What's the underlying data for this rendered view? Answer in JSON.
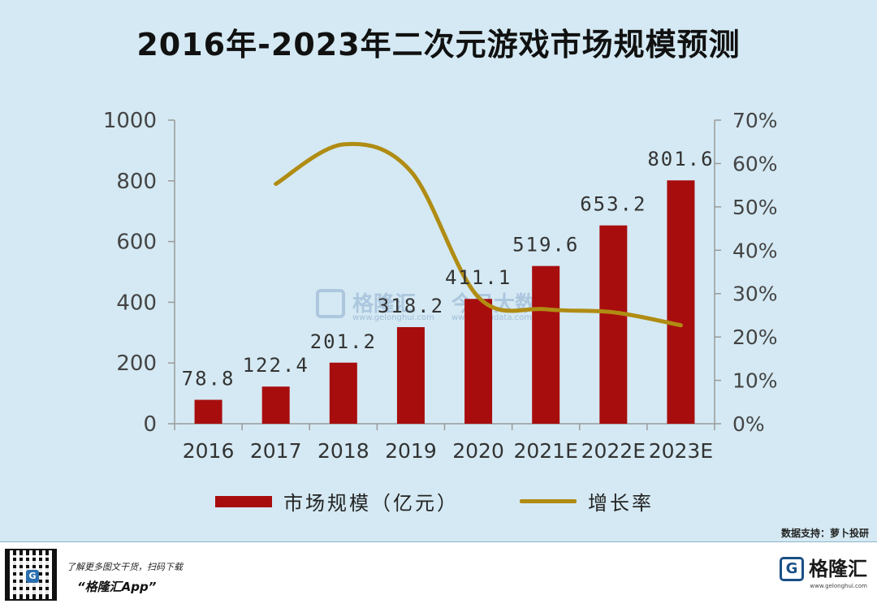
{
  "title": "2016年-2023年二次元游戏市场规模预测",
  "chart_data": {
    "type": "bar",
    "categories": [
      "2016",
      "2017",
      "2018",
      "2019",
      "2020",
      "2021E",
      "2022E",
      "2023E"
    ],
    "series": [
      {
        "name": "市场规模（亿元）",
        "type": "bar",
        "axis": "left",
        "values": [
          78.8,
          122.4,
          201.2,
          318.2,
          411.1,
          519.6,
          653.2,
          801.6
        ],
        "labels": [
          "78.8",
          "122.4",
          "201.2",
          "318.2",
          "411.1",
          "519.6",
          "653.2",
          "801.6"
        ]
      },
      {
        "name": "增长率",
        "type": "line",
        "axis": "right",
        "values": [
          null,
          55.3,
          64.4,
          58.2,
          29.2,
          26.4,
          25.7,
          22.7
        ]
      }
    ],
    "ylim": [
      0,
      1000
    ],
    "yticks": [
      "0",
      "200",
      "400",
      "600",
      "800",
      "1000"
    ],
    "y2lim": [
      0,
      70
    ],
    "y2ticks": [
      "0%",
      "10%",
      "20%",
      "30%",
      "40%",
      "50%",
      "60%",
      "70%"
    ],
    "bar_color": "#a80d0e",
    "line_color": "#b08c13"
  },
  "legend": {
    "bar_label": "市场规模（亿元）",
    "line_label": "增长率"
  },
  "source": "数据支持：萝卜投研",
  "watermark": {
    "brand": "格隆汇",
    "brand_url": "www.gelonghui.com",
    "partner": "今日大数据",
    "partner_url": "www.gogudata.com"
  },
  "footer": {
    "tagline": "了解更多图文干货，扫码下载",
    "app": "“格隆汇App”",
    "brand": "格隆汇",
    "brand_url": "www.gelonghui.com",
    "qr_logo": "G"
  }
}
